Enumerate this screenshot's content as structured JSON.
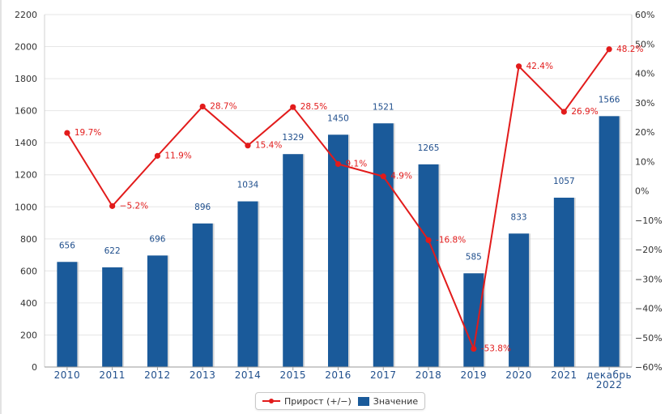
{
  "chart_data": {
    "type": "bar",
    "categories": [
      "2010",
      "2011",
      "2012",
      "2013",
      "2014",
      "2015",
      "2016",
      "2017",
      "2018",
      "2019",
      "2020",
      "2021",
      "декабрь 2022"
    ],
    "series": [
      {
        "name": "Значение",
        "type": "bar",
        "axis": "left",
        "color": "#1a5a9a",
        "values": [
          656,
          622,
          696,
          896,
          1034,
          1329,
          1450,
          1521,
          1265,
          585,
          833,
          1057,
          1566
        ]
      },
      {
        "name": "Прирост (+/−)",
        "type": "line",
        "axis": "right",
        "color": "#e21b1b",
        "values": [
          19.7,
          -5.2,
          11.9,
          28.7,
          15.4,
          28.5,
          9.1,
          4.9,
          -16.8,
          -53.8,
          42.4,
          26.9,
          48.2
        ],
        "labels": [
          "19.7%",
          "−5.2%",
          "11.9%",
          "28.7%",
          "15.4%",
          "28.5%",
          "9.1%",
          "4.9%",
          "-16.8%",
          "-53.8%",
          "42.4%",
          "26.9%",
          "48.2%"
        ]
      }
    ],
    "y_left": {
      "ylim": [
        0,
        2200
      ],
      "ticks": [
        0,
        200,
        400,
        600,
        800,
        1000,
        1200,
        1400,
        1600,
        1800,
        2000,
        2200
      ]
    },
    "y_right": {
      "ylim": [
        -60,
        60
      ],
      "ticks": [
        -60,
        -50,
        -40,
        -30,
        -20,
        -10,
        0,
        10,
        20,
        30,
        40,
        50,
        60
      ],
      "tick_labels": [
        "−60%",
        "−50%",
        "−40%",
        "−30%",
        "−20%",
        "−10%",
        "0%",
        "10%",
        "20%",
        "30%",
        "40%",
        "50%",
        "60%"
      ]
    },
    "title": "",
    "xlabel": "",
    "ylabel": "",
    "grid": true,
    "legend_position": "bottom-center"
  },
  "legend": {
    "line_label": "Прирост (+/−)",
    "bar_label": "Значение"
  }
}
